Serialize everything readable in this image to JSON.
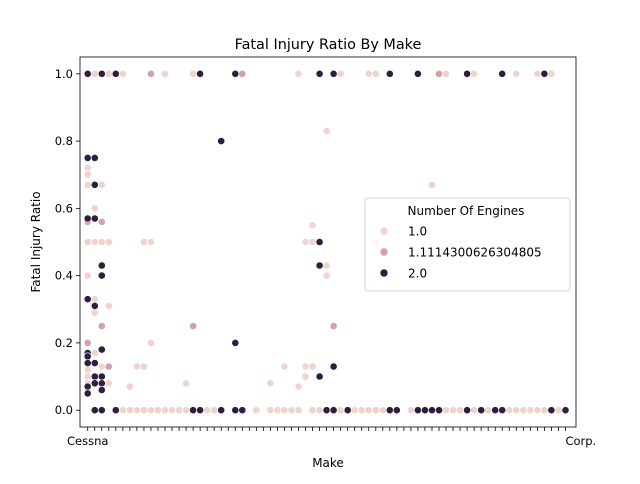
{
  "chart_data": {
    "type": "scatter",
    "title": "Fatal Injury Ratio By Make",
    "xlabel": "Make",
    "ylabel": "Fatal Injury Ratio",
    "ylim": [
      -0.05,
      1.05
    ],
    "yticks": [
      "0.0",
      "0.2",
      "0.4",
      "0.6",
      "0.8",
      "1.0"
    ],
    "x_tick_labels_visible": [
      "Cessna",
      "Corp."
    ],
    "grid": false,
    "legend": {
      "title": "Number Of Engines",
      "placement": "center-right",
      "entries": [
        "1.0",
        "1.1114300626304805",
        "2.0"
      ]
    },
    "colors": {
      "1.0": "#efd3ce",
      "1.1114300626304805": "#d2a2a6",
      "2.0": "#2d1e3e"
    },
    "series": [
      {
        "engines": "1.0",
        "points": [
          [
            0,
            0.72
          ],
          [
            0,
            0.7
          ],
          [
            0,
            0.67
          ],
          [
            0,
            0.5
          ],
          [
            0,
            0.4
          ],
          [
            0,
            0.33
          ],
          [
            0,
            0.2
          ],
          [
            0,
            0.14
          ],
          [
            0,
            0.12
          ],
          [
            0,
            0.1
          ],
          [
            0,
            0.08
          ],
          [
            0,
            0.06
          ],
          [
            0,
            1.0
          ],
          [
            1,
            1.0
          ],
          [
            1,
            0.6
          ],
          [
            1,
            0.5
          ],
          [
            1,
            0.33
          ],
          [
            1,
            0.29
          ],
          [
            1,
            0.17
          ],
          [
            2,
            1.0
          ],
          [
            2,
            0.67
          ],
          [
            2,
            0.5
          ],
          [
            2,
            0.13
          ],
          [
            2,
            0.0
          ],
          [
            3,
            1.0
          ],
          [
            3,
            0.5
          ],
          [
            3,
            0.31
          ],
          [
            3,
            0.13
          ],
          [
            3,
            0.08
          ],
          [
            4,
            1.0
          ],
          [
            4,
            0.0
          ],
          [
            5,
            1.0
          ],
          [
            5,
            0.0
          ],
          [
            6,
            0.07
          ],
          [
            6,
            0.0
          ],
          [
            7,
            0.13
          ],
          [
            7,
            0.0
          ],
          [
            8,
            0.5
          ],
          [
            8,
            0.13
          ],
          [
            8,
            0.0
          ],
          [
            9,
            0.5
          ],
          [
            9,
            0.2
          ],
          [
            9,
            0.0
          ],
          [
            10,
            0.0
          ],
          [
            11,
            1.0
          ],
          [
            11,
            0.0
          ],
          [
            12,
            0.0
          ],
          [
            13,
            0.0
          ],
          [
            14,
            0.08
          ],
          [
            14,
            0.0
          ],
          [
            15,
            1.0
          ],
          [
            17,
            0.0
          ],
          [
            18,
            0.0
          ],
          [
            19,
            0.0
          ],
          [
            21,
            1.0
          ],
          [
            21,
            0.0
          ],
          [
            22,
            0.0
          ],
          [
            24,
            0.0
          ],
          [
            26,
            0.08
          ],
          [
            26,
            0.0
          ],
          [
            27,
            0.0
          ],
          [
            28,
            0.13
          ],
          [
            28,
            0.0
          ],
          [
            29,
            0.0
          ],
          [
            30,
            1.0
          ],
          [
            30,
            0.07
          ],
          [
            30,
            0.0
          ],
          [
            31,
            0.5
          ],
          [
            31,
            0.13
          ],
          [
            31,
            0.1
          ],
          [
            32,
            0.55
          ],
          [
            32,
            0.5
          ],
          [
            32,
            0.13
          ],
          [
            32,
            0.0
          ],
          [
            33,
            0.0
          ],
          [
            34,
            0.83
          ],
          [
            34,
            0.43
          ],
          [
            34,
            0.4
          ],
          [
            35,
            0.0
          ],
          [
            36,
            1.0
          ],
          [
            36,
            0.0
          ],
          [
            38,
            0.0
          ],
          [
            39,
            0.0
          ],
          [
            40,
            1.0
          ],
          [
            40,
            0.0
          ],
          [
            41,
            1.0
          ],
          [
            41,
            0.5
          ],
          [
            41,
            0.0
          ],
          [
            42,
            0.0
          ],
          [
            44,
            0.0
          ],
          [
            46,
            0.0
          ],
          [
            47,
            0.0
          ],
          [
            48,
            0.0
          ],
          [
            49,
            0.67
          ],
          [
            49,
            0.0
          ],
          [
            51,
            1.0
          ],
          [
            51,
            0.0
          ],
          [
            52,
            0.0
          ],
          [
            53,
            0.0
          ],
          [
            55,
            1.0
          ],
          [
            55,
            0.0
          ],
          [
            56,
            0.0
          ],
          [
            57,
            0.0
          ],
          [
            58,
            0.0
          ],
          [
            60,
            0.0
          ],
          [
            61,
            1.0
          ],
          [
            61,
            0.0
          ],
          [
            62,
            0.0
          ],
          [
            63,
            0.0
          ],
          [
            64,
            1.0
          ],
          [
            64,
            0.0
          ],
          [
            65,
            1.0
          ],
          [
            65,
            0.0
          ],
          [
            66,
            1.0
          ],
          [
            66,
            0.0
          ],
          [
            67,
            0.0
          ],
          [
            68,
            0.0
          ]
        ]
      },
      {
        "engines": "1.1114300626304805",
        "points": [
          [
            0,
            0.56
          ],
          [
            0,
            0.2
          ],
          [
            2,
            0.56
          ],
          [
            2,
            0.25
          ],
          [
            3,
            0.13
          ],
          [
            9,
            1.0
          ],
          [
            15,
            0.25
          ],
          [
            22,
            1.0
          ],
          [
            35,
            0.25
          ],
          [
            50,
            1.0
          ]
        ]
      },
      {
        "engines": "2.0",
        "points": [
          [
            0,
            1.0
          ],
          [
            0,
            0.75
          ],
          [
            0,
            0.57
          ],
          [
            0,
            0.33
          ],
          [
            0,
            0.17
          ],
          [
            0,
            0.16
          ],
          [
            0,
            0.14
          ],
          [
            0,
            0.07
          ],
          [
            0,
            0.05
          ],
          [
            1,
            0.75
          ],
          [
            1,
            0.67
          ],
          [
            1,
            0.57
          ],
          [
            1,
            0.31
          ],
          [
            1,
            0.14
          ],
          [
            1,
            0.1
          ],
          [
            1,
            0.08
          ],
          [
            1,
            0.0
          ],
          [
            2,
            1.0
          ],
          [
            2,
            0.43
          ],
          [
            2,
            0.4
          ],
          [
            2,
            0.18
          ],
          [
            2,
            0.1
          ],
          [
            2,
            0.08
          ],
          [
            2,
            0.06
          ],
          [
            2,
            0.0
          ],
          [
            4,
            1.0
          ],
          [
            4,
            0.0
          ],
          [
            15,
            0.0
          ],
          [
            16,
            1.0
          ],
          [
            16,
            0.0
          ],
          [
            19,
            0.8
          ],
          [
            19,
            0.0
          ],
          [
            21,
            1.0
          ],
          [
            21,
            0.2
          ],
          [
            21,
            0.0
          ],
          [
            22,
            0.0
          ],
          [
            33,
            1.0
          ],
          [
            33,
            0.5
          ],
          [
            33,
            0.43
          ],
          [
            33,
            0.1
          ],
          [
            34,
            0.0
          ],
          [
            35,
            1.0
          ],
          [
            35,
            0.13
          ],
          [
            35,
            0.0
          ],
          [
            37,
            0.0
          ],
          [
            43,
            1.0
          ],
          [
            43,
            0.0
          ],
          [
            44,
            0.0
          ],
          [
            47,
            1.0
          ],
          [
            47,
            0.0
          ],
          [
            48,
            0.0
          ],
          [
            49,
            0.0
          ],
          [
            50,
            0.0
          ],
          [
            54,
            1.0
          ],
          [
            54,
            0.0
          ],
          [
            56,
            0.0
          ],
          [
            58,
            0.0
          ],
          [
            59,
            1.0
          ],
          [
            59,
            0.0
          ],
          [
            65,
            1.0
          ],
          [
            66,
            0.0
          ],
          [
            68,
            0.0
          ]
        ]
      }
    ]
  }
}
